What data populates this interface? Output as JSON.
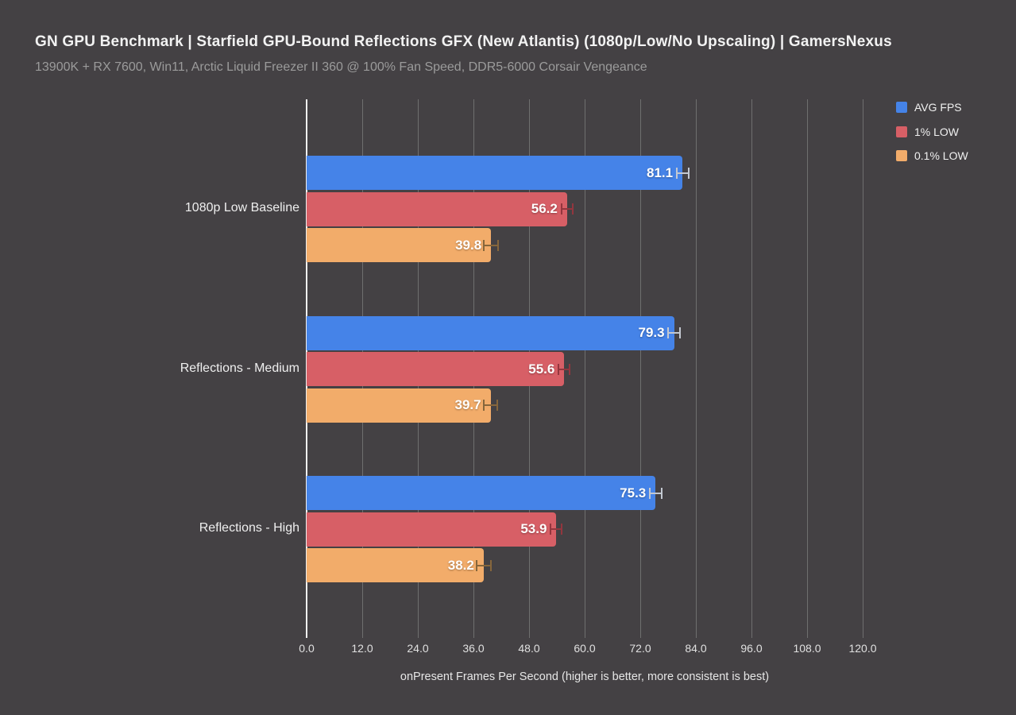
{
  "header": {
    "title": "GN GPU Benchmark | Starfield GPU-Bound Reflections GFX (New Atlantis) (1080p/Low/No Upscaling) | GamersNexus",
    "subtitle": "13900K + RX 7600, Win11, Arctic Liquid Freezer II 360 @ 100% Fan Speed, DDR5-6000 Corsair Vengeance"
  },
  "legend": {
    "position": "top-right",
    "items": [
      {
        "label": "AVG FPS",
        "color": "#4583e8"
      },
      {
        "label": "1% LOW",
        "color": "#d75f66"
      },
      {
        "label": "0.1% LOW",
        "color": "#f2ac6a"
      }
    ]
  },
  "chart_data": {
    "type": "bar",
    "orientation": "horizontal",
    "title": "GN GPU Benchmark | Starfield GPU-Bound Reflections GFX (New Atlantis) (1080p/Low/No Upscaling) | GamersNexus",
    "subtitle": "13900K + RX 7600, Win11, Arctic Liquid Freezer II 360 @ 100% Fan Speed, DDR5-6000 Corsair Vengeance",
    "categories": [
      "1080p Low Baseline",
      "Reflections - Medium",
      "Reflections - High"
    ],
    "series": [
      {
        "name": "AVG FPS",
        "color": "#4583e8",
        "error_color": "#c3c8d1",
        "values": [
          81.1,
          79.3,
          75.3
        ],
        "errors": [
          1.3,
          1.3,
          1.3
        ]
      },
      {
        "name": "1% LOW",
        "color": "#d75f66",
        "error_color": "#93363e",
        "values": [
          56.2,
          55.6,
          53.9
        ],
        "errors": [
          1.2,
          1.2,
          1.2
        ]
      },
      {
        "name": "0.1% LOW",
        "color": "#f2ac6a",
        "error_color": "#86663c",
        "values": [
          39.8,
          39.7,
          38.2
        ],
        "errors": [
          1.5,
          1.5,
          1.5
        ]
      }
    ],
    "xlabel": "onPresent Frames Per Second (higher is better, more consistent is best)",
    "xlim": [
      0,
      120
    ],
    "xticks": [
      0,
      12,
      24,
      36,
      48,
      60,
      72,
      84,
      96,
      108,
      120
    ],
    "xtick_labels": [
      "0.0",
      "12.0",
      "24.0",
      "36.0",
      "48.0",
      "60.0",
      "72.0",
      "84.0",
      "96.0",
      "108.0",
      "120.0"
    ],
    "grid": true,
    "legend_position": "top-right",
    "value_labels": "inside-end",
    "error_bars": true
  },
  "colors": {
    "background": "#444144",
    "gridline": "#6f6f6f",
    "zero_line": "#f0f0f0",
    "title_text": "#f2f2f2",
    "subtitle_text": "#9b9b9b",
    "tick_text": "#e0e0e0",
    "category_text": "#efefef",
    "value_text": "#ffffff"
  }
}
